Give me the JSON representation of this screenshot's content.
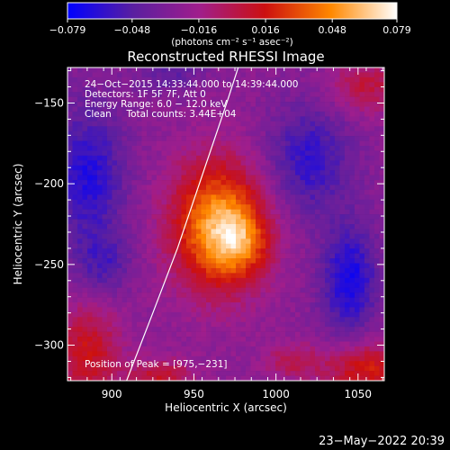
{
  "chart_data": {
    "type": "heatmap",
    "title": "Reconstructed RHESSI Image",
    "xlabel": "Heliocentric X (arcsec)",
    "ylabel": "Heliocentric Y (arcsec)",
    "xlim": [
      873,
      1066
    ],
    "ylim": [
      -322,
      -128
    ],
    "x_ticks": [
      900,
      950,
      1000,
      1050
    ],
    "y_ticks": [
      -150,
      -200,
      -250,
      -300
    ],
    "colorbar": {
      "min": -0.079,
      "max": 0.079,
      "tick_values": [
        -0.079,
        -0.048,
        -0.016,
        0.016,
        0.048,
        0.079
      ],
      "tick_labels": [
        "−0.079",
        "−0.048",
        "−0.016",
        "0.016",
        "0.048",
        "0.079"
      ],
      "units": "(photons cm⁻² s⁻¹ asec⁻²)",
      "colors": [
        "#0000ff",
        "#5a1fa0",
        "#a01e8c",
        "#cc1010",
        "#ff8800",
        "#ffffff"
      ]
    },
    "annotations": [
      "24−Oct−2015 14:33:44.000 to 14:39:44.000",
      "Detectors: 1F 5F 7F, Att 0",
      "Energy Range: 6.0 − 12.0 keV",
      "Clean     Total counts: 3.44E+04"
    ],
    "peak_label": "Position of Peak = [975,−231]",
    "peak": [
      975,
      -231
    ],
    "limb_curve": [
      [
        909,
        -322
      ],
      [
        925,
        -280
      ],
      [
        940,
        -240
      ],
      [
        955,
        -195
      ],
      [
        970,
        -150
      ],
      [
        977,
        -128
      ]
    ],
    "source_components": [
      {
        "x": 965,
        "y": -226,
        "sx": 20,
        "sy": 28,
        "amp": 0.079
      },
      {
        "x": 978,
        "y": -236,
        "sx": 12,
        "sy": 14,
        "amp": 0.035
      }
    ],
    "background_features": [
      {
        "x": 885,
        "y": -305,
        "sx": 14,
        "sy": 22,
        "amp": 0.04
      },
      {
        "x": 1055,
        "y": -315,
        "sx": 18,
        "sy": 12,
        "amp": 0.045
      },
      {
        "x": 1055,
        "y": -140,
        "sx": 16,
        "sy": 12,
        "amp": 0.03
      },
      {
        "x": 930,
        "y": -320,
        "sx": 14,
        "sy": 8,
        "amp": 0.035
      },
      {
        "x": 1010,
        "y": -310,
        "sx": 12,
        "sy": 8,
        "amp": 0.025
      },
      {
        "x": 885,
        "y": -195,
        "sx": 16,
        "sy": 30,
        "amp": -0.04
      },
      {
        "x": 895,
        "y": -250,
        "sx": 12,
        "sy": 14,
        "amp": -0.025
      },
      {
        "x": 1045,
        "y": -260,
        "sx": 12,
        "sy": 24,
        "amp": -0.045
      },
      {
        "x": 1020,
        "y": -185,
        "sx": 18,
        "sy": 24,
        "amp": -0.035
      },
      {
        "x": 935,
        "y": -130,
        "sx": 14,
        "sy": 10,
        "amp": -0.02
      }
    ]
  },
  "footer": {
    "timestamp": "23−May−2022 20:39"
  }
}
